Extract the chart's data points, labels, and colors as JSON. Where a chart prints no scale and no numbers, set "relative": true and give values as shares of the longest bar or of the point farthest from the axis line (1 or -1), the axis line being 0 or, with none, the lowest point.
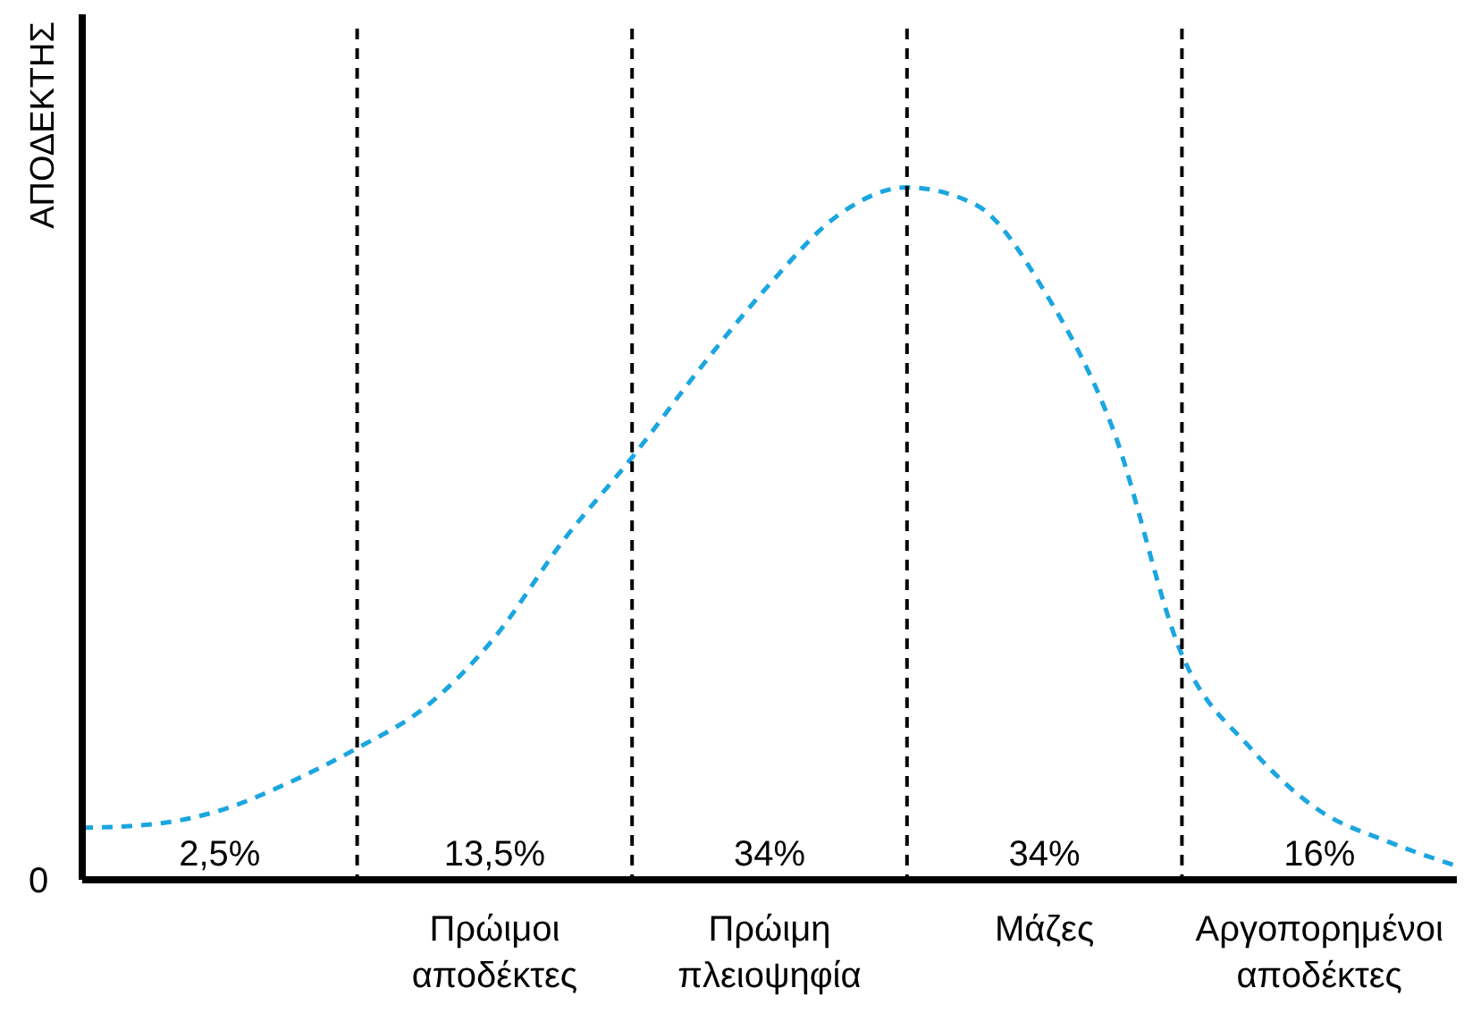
{
  "chart_data": {
    "type": "line",
    "relative": true,
    "ylabel": "ΑΠΟΔΕΚΤΗΣ",
    "annotations": [
      "0",
      "2,5%",
      "13,5%",
      "34%",
      "34%",
      "16%"
    ],
    "categories": [
      null,
      null,
      null,
      null,
      null,
      null,
      "Πρώιμοι αποδέκτες",
      null,
      null,
      null,
      "Πρώιμη πλειοψηφία",
      null,
      null,
      null,
      "Μάζες",
      null,
      null,
      null,
      "Αργοπορημένοι αποδέκτες",
      null,
      null
    ],
    "series": [
      {
        "color": "#1ba6e0",
        "line_style": "dashed",
        "values": [
          0.075,
          0.08,
          0.1,
          0.14,
          0.19,
          0.25,
          0.35,
          0.49,
          0.61,
          0.74,
          0.86,
          0.96,
          1,
          0.975,
          0.85,
          0.65,
          0.325,
          0.19,
          0.1,
          0.055,
          0.02
        ]
      }
    ],
    "grid": "x",
    "marker": "none"
  }
}
